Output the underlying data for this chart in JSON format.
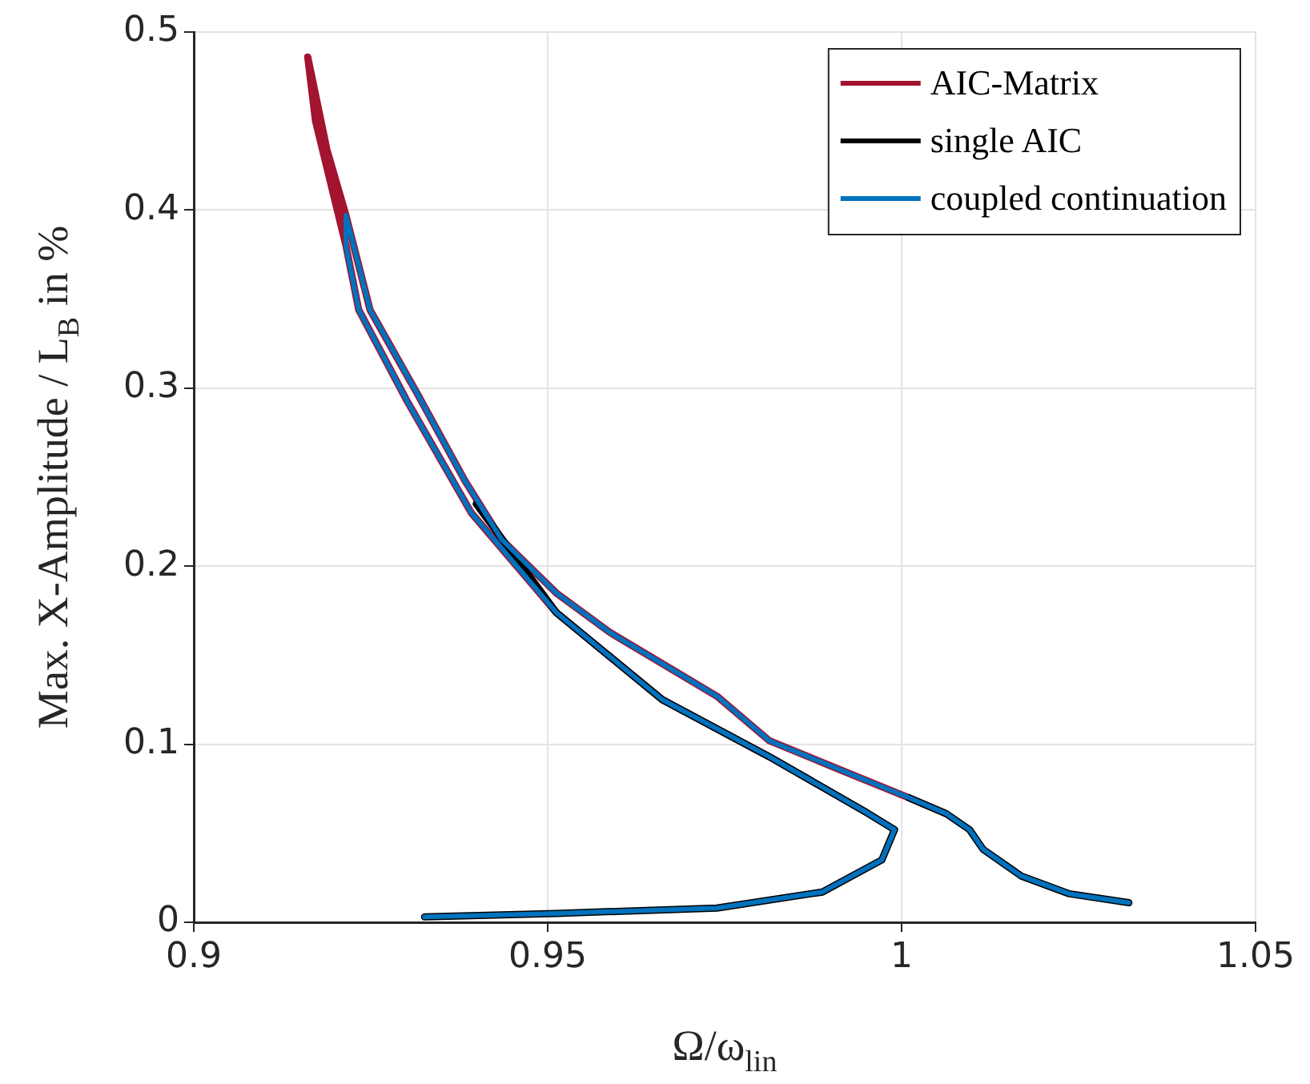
{
  "chart_data": {
    "type": "line",
    "xlabel": "Ω/ω$_{lin}$",
    "ylabel": "Max. X-Amplitude / L$_{B}$ in %",
    "xlim": [
      0.9,
      1.05
    ],
    "xticks": [
      0.9,
      0.95,
      1,
      1.05
    ],
    "ylim": [
      0,
      0.5
    ],
    "yticks": [
      0,
      0.1,
      0.2,
      0.3,
      0.4,
      0.5
    ],
    "grid": true,
    "legend": "top right",
    "marker": "none",
    "line_style": "solid",
    "series": [
      {
        "name": "AIC-Matrix",
        "color": "#a2142f",
        "x": [
          1.0063,
          1.001,
          0.9911,
          0.9813,
          0.9739,
          0.9587,
          0.9512,
          0.9435,
          0.9383,
          0.9317,
          0.9249,
          0.9215,
          0.9188,
          0.9161,
          0.9172,
          0.9215,
          0.9233,
          0.9301,
          0.9392,
          0.9512,
          0.9662,
          0.9813,
          0.9949
        ],
        "values": [
          0.061,
          0.07,
          0.086,
          0.102,
          0.127,
          0.163,
          0.185,
          0.215,
          0.248,
          0.296,
          0.344,
          0.397,
          0.434,
          0.486,
          0.45,
          0.38,
          0.344,
          0.293,
          0.23,
          0.174,
          0.125,
          0.093,
          0.062
        ]
      },
      {
        "name": "single AIC",
        "color": "#000000",
        "x": [
          1.0321,
          1.0237,
          1.0169,
          1.0115,
          1.0096,
          1.0063,
          1.001,
          null,
          0.9399,
          0.9512,
          0.9662,
          0.9813,
          0.9949,
          0.999,
          0.9972,
          0.9888,
          0.9739,
          0.9512,
          0.9326
        ],
        "values": [
          0.011,
          0.016,
          0.026,
          0.041,
          0.052,
          0.061,
          0.07,
          null,
          0.235,
          0.174,
          0.125,
          0.093,
          0.062,
          0.052,
          0.035,
          0.017,
          0.008,
          0.005,
          0.003
        ]
      },
      {
        "name": "coupled continuation",
        "color": "#0072bd",
        "x": [
          1.0321,
          1.0237,
          1.0169,
          1.0115,
          1.0096,
          1.0063,
          1.001,
          0.9911,
          0.9813,
          0.9739,
          0.9587,
          0.9512,
          0.9435,
          0.9383,
          0.9317,
          0.9249,
          0.9215,
          0.9215,
          0.9233,
          0.9301,
          0.9392,
          0.9512,
          0.9662,
          0.9813,
          0.9949,
          0.999,
          0.9972,
          0.9888,
          0.9739,
          0.9512,
          0.9326
        ],
        "values": [
          0.011,
          0.016,
          0.026,
          0.041,
          0.052,
          0.061,
          0.07,
          0.086,
          0.102,
          0.127,
          0.163,
          0.185,
          0.215,
          0.248,
          0.296,
          0.344,
          0.397,
          0.38,
          0.344,
          0.293,
          0.23,
          0.174,
          0.125,
          0.093,
          0.062,
          0.052,
          0.035,
          0.017,
          0.008,
          0.005,
          0.003
        ]
      }
    ]
  }
}
